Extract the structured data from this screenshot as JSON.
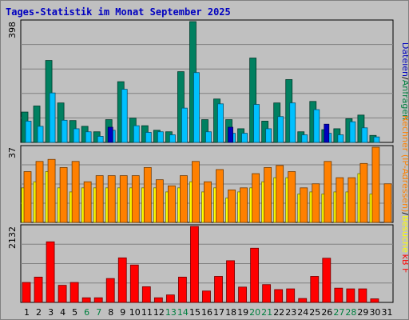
{
  "chart_data": {
    "type": "bar",
    "title": "Tages-Statistik im Monat September 2025",
    "x": [
      "1",
      "2",
      "3",
      "4",
      "5",
      "6",
      "7",
      "8",
      "9",
      "10",
      "11",
      "12",
      "13",
      "14",
      "15",
      "16",
      "17",
      "18",
      "19",
      "20",
      "21",
      "22",
      "23",
      "24",
      "25",
      "26",
      "27",
      "28",
      "29",
      "30",
      "31"
    ],
    "weekend_days": [
      6,
      7,
      13,
      14,
      20,
      21,
      27,
      28
    ],
    "panels": [
      {
        "ymax_label": "398",
        "ylabel_parts": [
          {
            "text": "Dateien",
            "color": "#0000C0"
          },
          {
            "text": "/",
            "color": "#000000"
          },
          {
            "text": "Anfragen",
            "color": "#008040"
          }
        ],
        "series": [
          {
            "name": "Anfragen",
            "color": "#008060",
            "values": [
              100,
              120,
              270,
              130,
              72,
              53,
              35,
              75,
              200,
              80,
              55,
              40,
              35,
              233,
              398,
              75,
              143,
              75,
              45,
              278,
              70,
              130,
              207,
              35,
              135,
              42,
              45,
              78,
              90,
              23,
              0
            ]
          },
          {
            "name": "Dateien",
            "color": "#00C0FF",
            "values": [
              70,
              53,
              163,
              73,
              45,
              35,
              20,
              40,
              175,
              55,
              33,
              35,
              25,
              113,
              230,
              35,
              127,
              30,
              30,
              125,
              45,
              85,
              130,
              25,
              108,
              30,
              25,
              68,
              48,
              18,
              0
            ]
          },
          {
            "name": "Seiten",
            "color": "#0000C0",
            "values": [
              0,
              0,
              0,
              0,
              0,
              0,
              0,
              50,
              0,
              0,
              0,
              0,
              0,
              0,
              0,
              0,
              0,
              50,
              0,
              0,
              0,
              0,
              0,
              0,
              0,
              60,
              0,
              0,
              0,
              0,
              0
            ]
          }
        ]
      },
      {
        "ymax_label": "37",
        "ylabel_parts": [
          {
            "text": "Rechner (IP-Adressen)",
            "color": "#FF8000"
          },
          {
            "text": "/",
            "color": "#000000"
          },
          {
            "text": "Besuche",
            "color": "#FFFF00"
          }
        ],
        "series": [
          {
            "name": "Besuche",
            "color": "#FFFF00",
            "values": [
              17,
              20,
              25,
              17,
              15,
              17,
              17,
              17,
              17,
              17,
              17,
              17,
              15,
              17,
              20,
              15,
              17,
              12,
              15,
              17,
              20,
              22,
              22,
              14,
              15,
              14,
              15,
              15,
              24,
              14,
              0
            ]
          },
          {
            "name": "Rechner",
            "color": "#FF8000",
            "values": [
              25,
              30,
              31,
              27,
              30,
              20,
              23,
              23,
              23,
              23,
              27,
              21,
              18,
              23,
              30,
              20,
              26,
              16,
              17,
              24,
              27,
              28,
              25,
              17,
              19,
              30,
              22,
              22,
              29,
              37,
              19
            ]
          }
        ]
      },
      {
        "ymax_label": "2132",
        "ylabel_parts": [
          {
            "text": "kB F",
            "color": "#FF0000"
          }
        ],
        "series": [
          {
            "name": "kB F",
            "color": "#FF0000",
            "values": [
              560,
              710,
              1700,
              480,
              560,
              130,
              130,
              670,
              1250,
              1050,
              440,
              130,
              210,
              710,
              2132,
              320,
              730,
              1170,
              430,
              1520,
              500,
              360,
              380,
              110,
              730,
              1240,
              400,
              380,
              380,
              100,
              0
            ]
          }
        ]
      }
    ]
  }
}
